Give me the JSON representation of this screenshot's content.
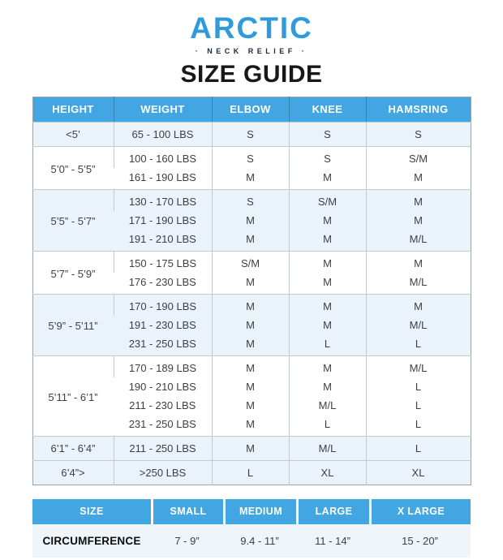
{
  "brand": {
    "logo_text": "ARCTIC",
    "tagline": "· NECK RELIEF ·"
  },
  "page_title": "SIZE GUIDE",
  "colors": {
    "accent_blue": "#41a6e2",
    "row_shade": "#eaf3fa",
    "logo_blue": "#2f9bdc",
    "tagline_navy": "#1c2b3d"
  },
  "size_table": {
    "headers": [
      "HEIGHT",
      "WEIGHT",
      "ELBOW",
      "KNEE",
      "HAMSRING"
    ],
    "groups": [
      {
        "height": "<5’",
        "shaded": true,
        "rows": [
          [
            "65 - 100 LBS",
            "S",
            "S",
            "S"
          ]
        ]
      },
      {
        "height": "5’0” - 5’5”",
        "shaded": false,
        "rows": [
          [
            "100 - 160 LBS",
            "S",
            "S",
            "S/M"
          ],
          [
            "161 - 190 LBS",
            "M",
            "M",
            "M"
          ]
        ]
      },
      {
        "height": "5’5” - 5’7”",
        "shaded": true,
        "rows": [
          [
            "130 - 170 LBS",
            "S",
            "S/M",
            "M"
          ],
          [
            "171 - 190 LBS",
            "M",
            "M",
            "M"
          ],
          [
            "191 - 210 LBS",
            "M",
            "M",
            "M/L"
          ]
        ]
      },
      {
        "height": "5’7” - 5’9”",
        "shaded": false,
        "rows": [
          [
            "150 - 175 LBS",
            "S/M",
            "M",
            "M"
          ],
          [
            "176 - 230 LBS",
            "M",
            "M",
            "M/L"
          ]
        ]
      },
      {
        "height": "5’9” - 5’11”",
        "shaded": true,
        "rows": [
          [
            "170 - 190 LBS",
            "M",
            "M",
            "M"
          ],
          [
            "191 - 230 LBS",
            "M",
            "M",
            "M/L"
          ],
          [
            "231 - 250 LBS",
            "M",
            "L",
            "L"
          ]
        ]
      },
      {
        "height": "5’11” - 6’1”",
        "shaded": false,
        "rows": [
          [
            "170 - 189 LBS",
            "M",
            "M",
            "M/L"
          ],
          [
            "190 - 210 LBS",
            "M",
            "M",
            "L"
          ],
          [
            "211 - 230 LBS",
            "M",
            "M/L",
            "L"
          ],
          [
            "231 - 250 LBS",
            "M",
            "L",
            "L"
          ]
        ]
      },
      {
        "height": "6’1” - 6’4”",
        "shaded": true,
        "rows": [
          [
            "211 - 250 LBS",
            "M",
            "M/L",
            "L"
          ]
        ]
      },
      {
        "height": "6’4”>",
        "shaded": true,
        "rows": [
          [
            ">250 LBS",
            "L",
            "XL",
            "XL"
          ]
        ]
      }
    ]
  },
  "circumference_table": {
    "headers": [
      "SIZE",
      "SMALL",
      "MEDIUM",
      "LARGE",
      "X LARGE"
    ],
    "row_label": "CIRCUMFERENCE",
    "values": [
      "7 - 9”",
      "9.4 - 11”",
      "11 - 14”",
      "15 - 20”"
    ]
  }
}
